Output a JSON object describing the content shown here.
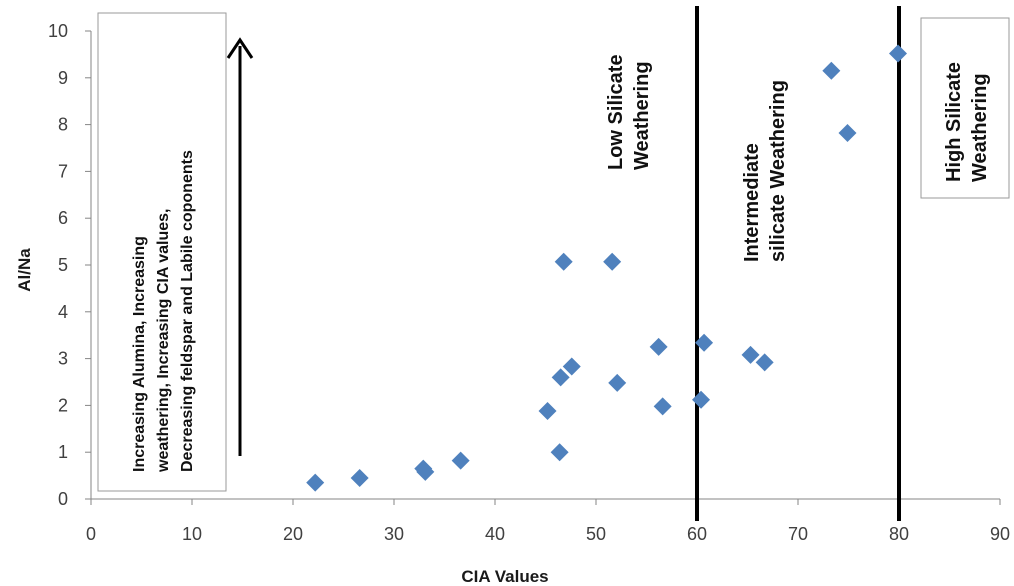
{
  "chart_data": {
    "type": "scatter",
    "xlabel": "CIA Values",
    "ylabel": "Al/Na",
    "xlim": [
      0,
      90
    ],
    "ylim": [
      0,
      10
    ],
    "x_ticks": [
      "0",
      "10",
      "20",
      "30",
      "40",
      "50",
      "60",
      "70",
      "80",
      "90"
    ],
    "y_ticks": [
      "0",
      "1",
      "2",
      "3",
      "4",
      "5",
      "6",
      "7",
      "8",
      "9",
      "10"
    ],
    "grid": false,
    "marker": "diamond",
    "marker_color": "#4F81BD",
    "points": [
      {
        "x": 22.2,
        "y": 0.35
      },
      {
        "x": 26.6,
        "y": 0.45
      },
      {
        "x": 32.9,
        "y": 0.65
      },
      {
        "x": 33.1,
        "y": 0.58
      },
      {
        "x": 36.6,
        "y": 0.82
      },
      {
        "x": 45.2,
        "y": 1.88
      },
      {
        "x": 46.4,
        "y": 1.0
      },
      {
        "x": 46.5,
        "y": 2.6
      },
      {
        "x": 46.8,
        "y": 5.07
      },
      {
        "x": 47.6,
        "y": 2.83
      },
      {
        "x": 51.6,
        "y": 5.07
      },
      {
        "x": 52.1,
        "y": 2.48
      },
      {
        "x": 56.2,
        "y": 3.25
      },
      {
        "x": 56.6,
        "y": 1.98
      },
      {
        "x": 60.4,
        "y": 2.12
      },
      {
        "x": 60.7,
        "y": 3.34
      },
      {
        "x": 65.3,
        "y": 3.08
      },
      {
        "x": 66.7,
        "y": 2.92
      },
      {
        "x": 73.3,
        "y": 9.15
      },
      {
        "x": 74.9,
        "y": 7.82
      },
      {
        "x": 79.9,
        "y": 9.52
      }
    ],
    "boundaries": [
      60,
      80
    ],
    "boundary_color": "#000000",
    "annotations": {
      "arrow_note": [
        "Increasing Alumina, Increasing",
        "weathering, Increasing CIA values,",
        "Decreasing feldspar and Labile coponents"
      ],
      "low": [
        "Low Silicate",
        "Weathering"
      ],
      "intermediate": [
        "Intermediate",
        "silicate Weathering"
      ],
      "high": [
        "High Silicate",
        "Weathering"
      ]
    }
  }
}
